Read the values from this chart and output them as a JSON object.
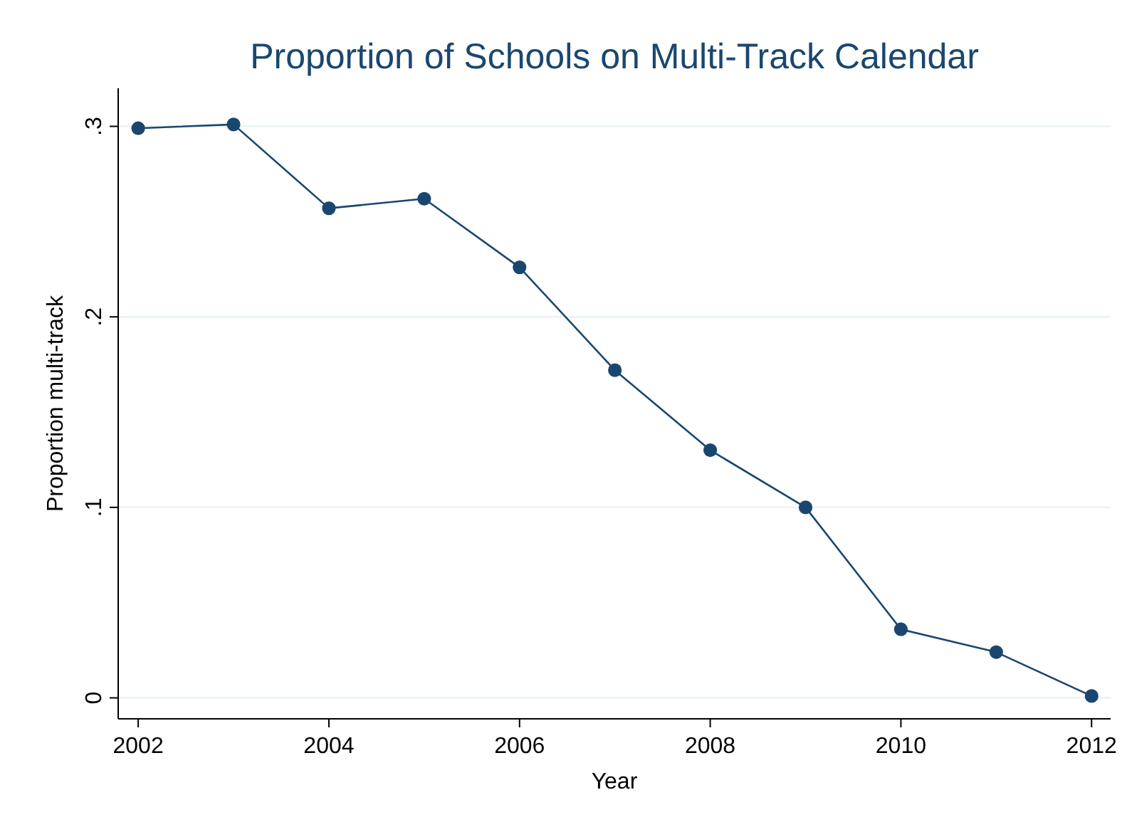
{
  "chart_data": {
    "type": "line",
    "title": "Proportion of Schools on Multi-Track Calendar",
    "xlabel": "Year",
    "ylabel": "Proportion multi-track",
    "x": [
      2002,
      2003,
      2004,
      2005,
      2006,
      2007,
      2008,
      2009,
      2010,
      2011,
      2012
    ],
    "series": [
      {
        "color": "#1a476f",
        "values": [
          0.299,
          0.301,
          0.257,
          0.262,
          0.226,
          0.172,
          0.13,
          0.1,
          0.036,
          0.024,
          0.001
        ]
      }
    ],
    "xlim": [
      2001.79,
      2012.2
    ],
    "xticks": [
      2002,
      2004,
      2006,
      2008,
      2010,
      2012
    ],
    "ylim": [
      -0.011,
      0.32
    ],
    "yticks": [
      {
        "value": 0,
        "label": "0"
      },
      {
        "value": 0.1,
        "label": ".1"
      },
      {
        "value": 0.2,
        "label": ".2"
      },
      {
        "value": 0.3,
        "label": ".3"
      }
    ],
    "grid": "y",
    "marker": "circle",
    "line_style": "solid"
  }
}
